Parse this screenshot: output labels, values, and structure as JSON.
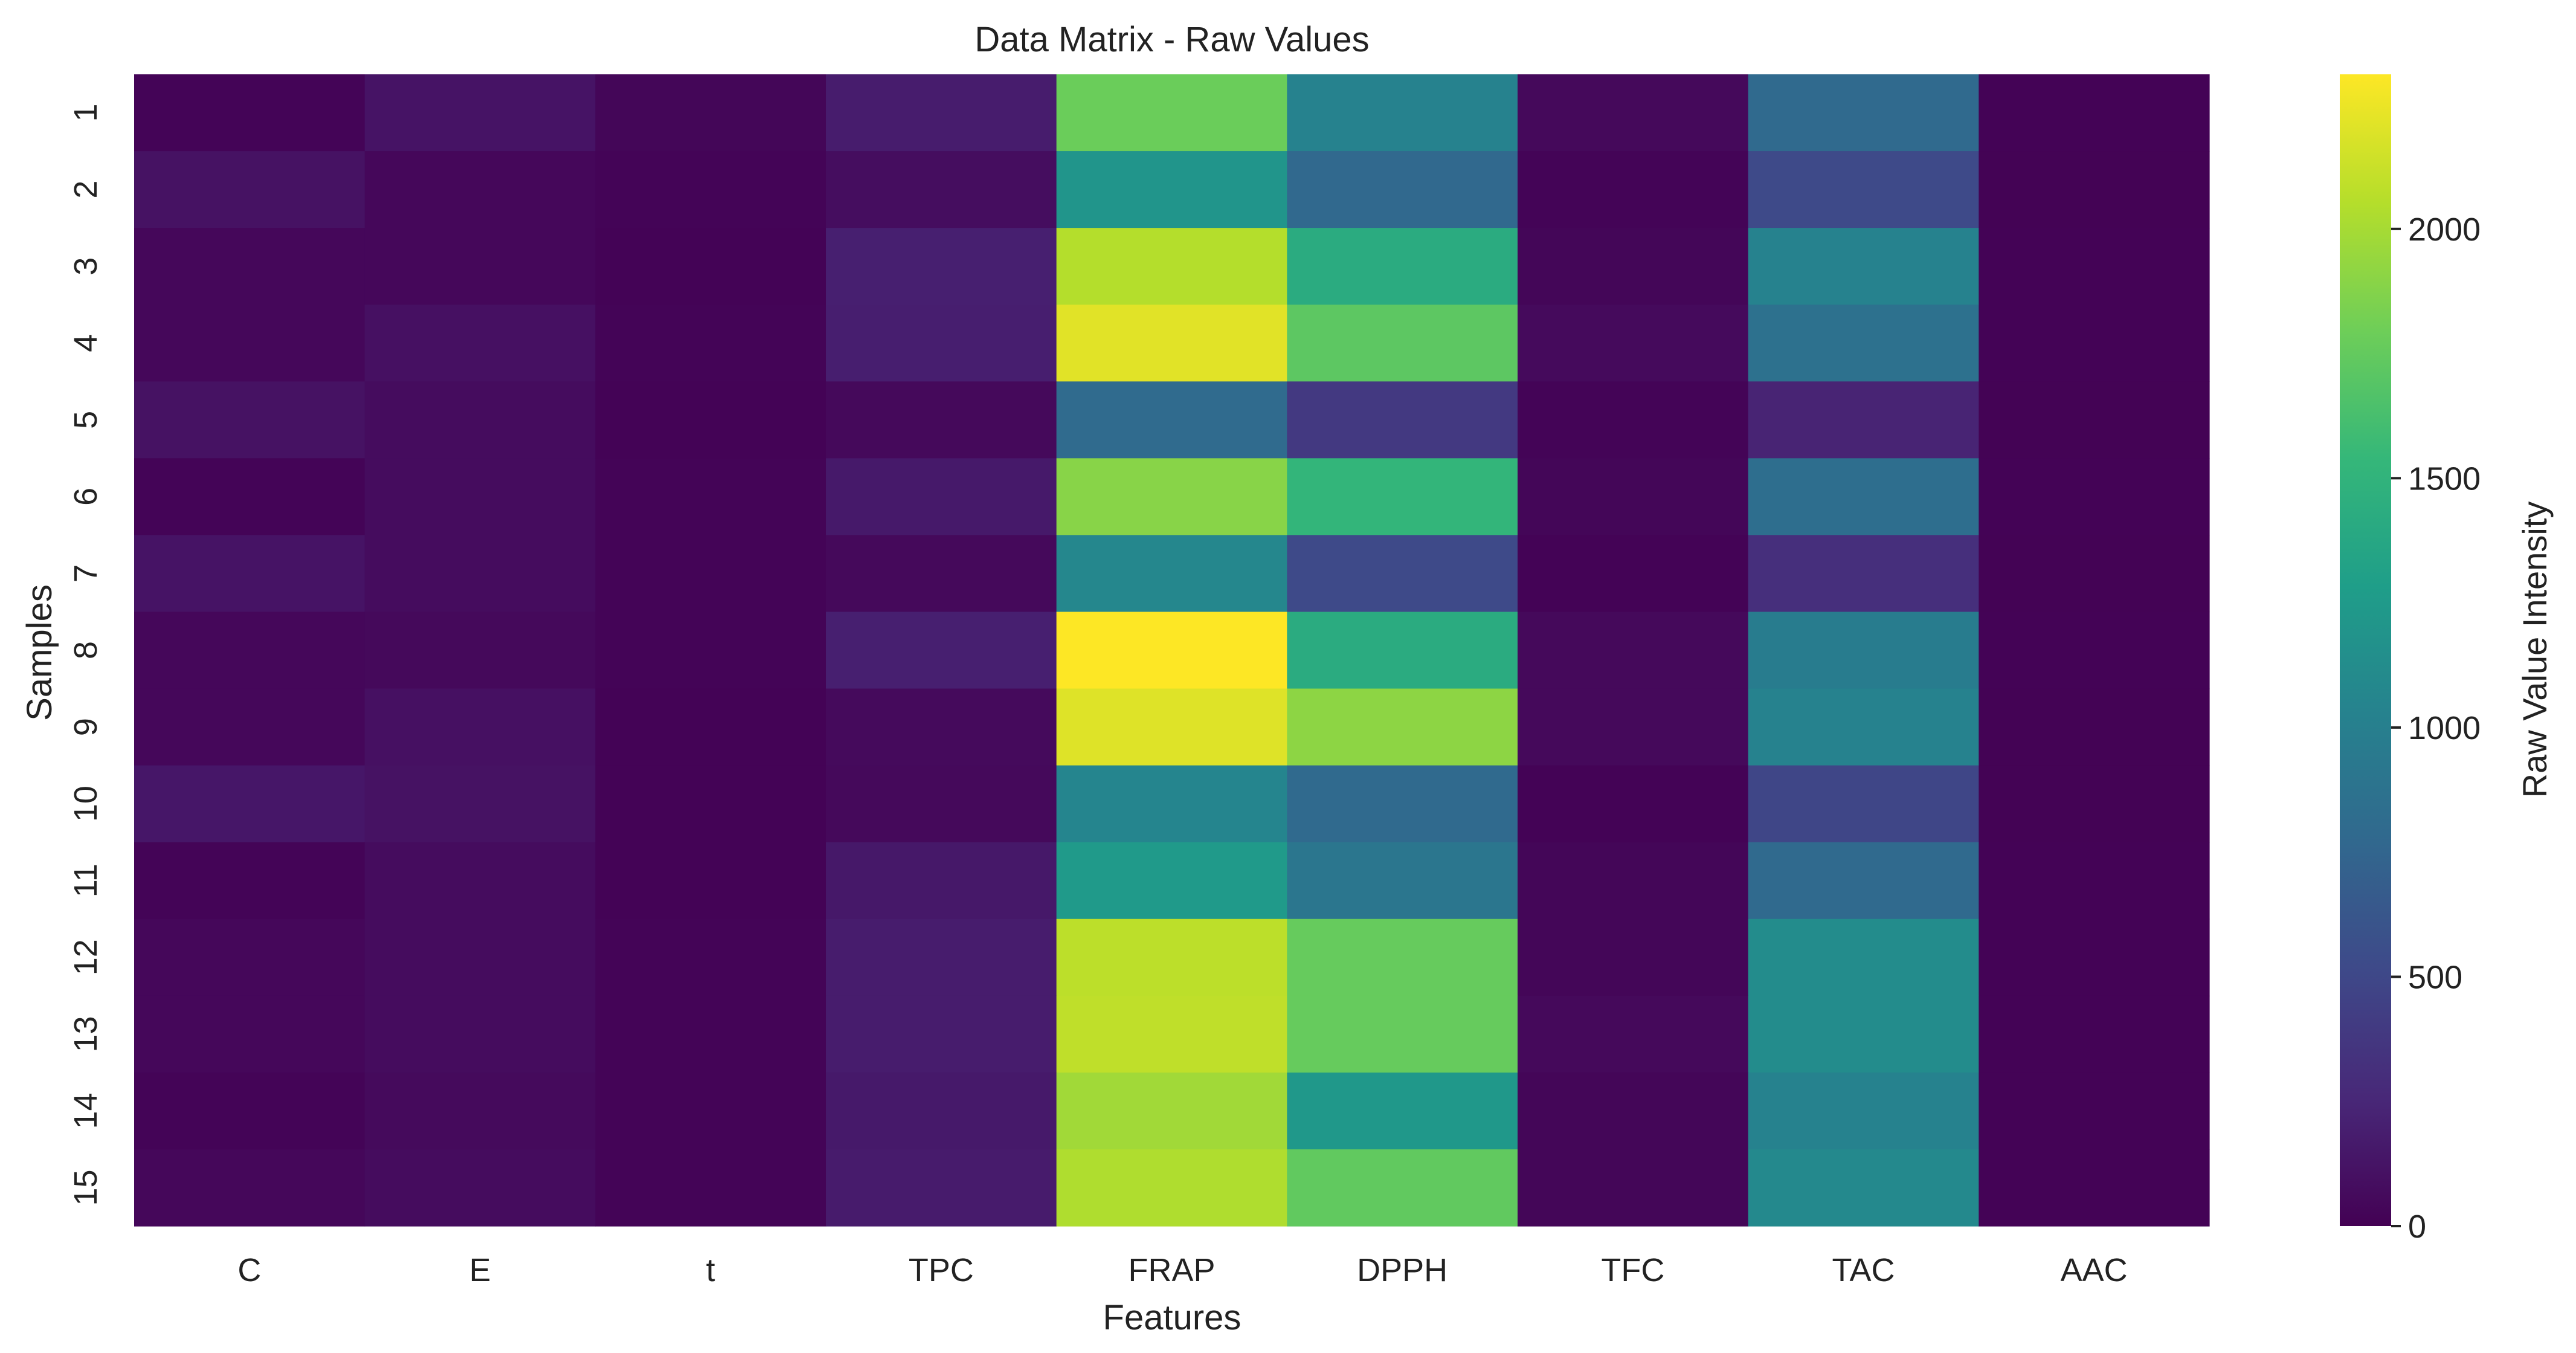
{
  "chart_data": {
    "type": "heatmap",
    "title": "Data Matrix - Raw Values",
    "xlabel": "Features",
    "ylabel": "Samples",
    "colorbar_label": "Raw Value Intensity",
    "colormap": "viridis",
    "colorbar_range": [
      0,
      2310
    ],
    "colorbar_ticks": [
      0,
      500,
      1000,
      1500,
      2000
    ],
    "grid": false,
    "x_categories": [
      "C",
      "E",
      "t",
      "TPC",
      "FRAP",
      "DPPH",
      "TFC",
      "TAC",
      "AAC"
    ],
    "y_categories": [
      "1",
      "2",
      "3",
      "4",
      "5",
      "6",
      "7",
      "8",
      "9",
      "10",
      "11",
      "12",
      "13",
      "14",
      "15"
    ],
    "values": [
      [
        20,
        120,
        30,
        180,
        1780,
        1030,
        50,
        790,
        15
      ],
      [
        110,
        40,
        20,
        80,
        1200,
        780,
        20,
        520,
        10
      ],
      [
        40,
        40,
        15,
        200,
        2050,
        1420,
        30,
        1030,
        15
      ],
      [
        40,
        100,
        20,
        190,
        2210,
        1720,
        60,
        860,
        15
      ],
      [
        110,
        70,
        15,
        50,
        800,
        390,
        20,
        230,
        10
      ],
      [
        20,
        70,
        20,
        160,
        1890,
        1520,
        30,
        830,
        15
      ],
      [
        120,
        70,
        20,
        50,
        1070,
        520,
        15,
        310,
        10
      ],
      [
        40,
        50,
        20,
        200,
        2310,
        1420,
        50,
        970,
        15
      ],
      [
        40,
        100,
        15,
        60,
        2200,
        1910,
        50,
        1030,
        10
      ],
      [
        140,
        110,
        15,
        50,
        1050,
        790,
        15,
        490,
        10
      ],
      [
        20,
        70,
        15,
        150,
        1250,
        910,
        30,
        790,
        15
      ],
      [
        40,
        70,
        20,
        180,
        2080,
        1760,
        30,
        1120,
        15
      ],
      [
        40,
        70,
        20,
        180,
        2090,
        1760,
        50,
        1120,
        15
      ],
      [
        20,
        60,
        20,
        160,
        1980,
        1230,
        30,
        1030,
        15
      ],
      [
        40,
        70,
        20,
        170,
        2030,
        1740,
        30,
        1090,
        15
      ]
    ]
  }
}
